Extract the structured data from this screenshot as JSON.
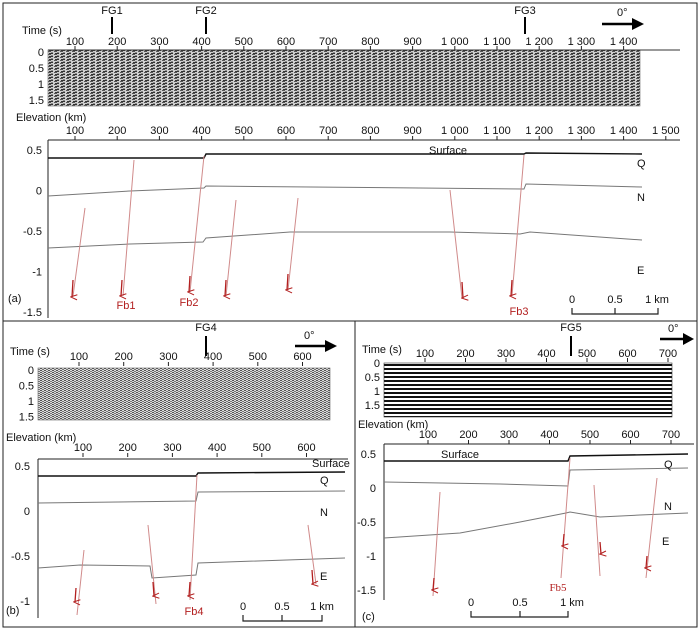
{
  "panel_a": {
    "label": "(a)",
    "time_title": "Time (s)",
    "elev_title": "Elevation (km)",
    "top_ticks": [
      "100",
      "200",
      "300",
      "400",
      "500",
      "600",
      "700",
      "800",
      "900",
      "1 000",
      "1 100",
      "1 200",
      "1 300",
      "1 400"
    ],
    "bottom_ticks": [
      "100",
      "200",
      "300",
      "400",
      "500",
      "600",
      "700",
      "800",
      "900",
      "1 000",
      "1 100",
      "1 200",
      "1 300",
      "1 400",
      "1 500"
    ],
    "time_ticks": [
      "0",
      "0.5",
      "1",
      "1.5"
    ],
    "elev_ticks": [
      "0.5",
      "0",
      "-0.5",
      "-1",
      "-1.5"
    ],
    "fg_labels": [
      "FG1",
      "FG2",
      "FG3"
    ],
    "north": "0°",
    "surface": "Surface",
    "layers": [
      "Q",
      "N",
      "E"
    ],
    "faults": [
      "Fb1",
      "Fb2",
      "Fb3"
    ],
    "scale": [
      "0",
      "0.5",
      "1 km"
    ]
  },
  "panel_b": {
    "label": "(b)",
    "time_title": "Time (s)",
    "elev_title": "Elevation (km)",
    "top_ticks": [
      "100",
      "200",
      "300",
      "400",
      "500",
      "600"
    ],
    "bottom_ticks": [
      "100",
      "200",
      "300",
      "400",
      "500",
      "600"
    ],
    "time_ticks": [
      "0",
      "0.5",
      "1",
      "1.5"
    ],
    "elev_ticks": [
      "0.5",
      "0",
      "-0.5",
      "-1"
    ],
    "fg_labels": [
      "FG4"
    ],
    "north": "0°",
    "surface": "Surface",
    "layers": [
      "Q",
      "N",
      "E"
    ],
    "faults": [
      "Fb4"
    ],
    "scale": [
      "0",
      "0.5",
      "1 km"
    ]
  },
  "panel_c": {
    "label": "(c)",
    "time_title": "Time (s)",
    "elev_title": "Elevation (km)",
    "top_ticks": [
      "100",
      "200",
      "300",
      "400",
      "500",
      "600",
      "700"
    ],
    "bottom_ticks": [
      "100",
      "200",
      "300",
      "400",
      "500",
      "600",
      "700"
    ],
    "time_ticks": [
      "0",
      "0.5",
      "1",
      "1.5"
    ],
    "elev_ticks": [
      "0.5",
      "0",
      "-0.5",
      "-1",
      "-1.5"
    ],
    "fg_labels": [
      "FG5"
    ],
    "north": "0°",
    "surface": "Surface",
    "layers": [
      "Q",
      "N",
      "E"
    ],
    "faults": [
      "Fb5"
    ],
    "scale": [
      "0",
      "0.5",
      "1 km"
    ]
  }
}
